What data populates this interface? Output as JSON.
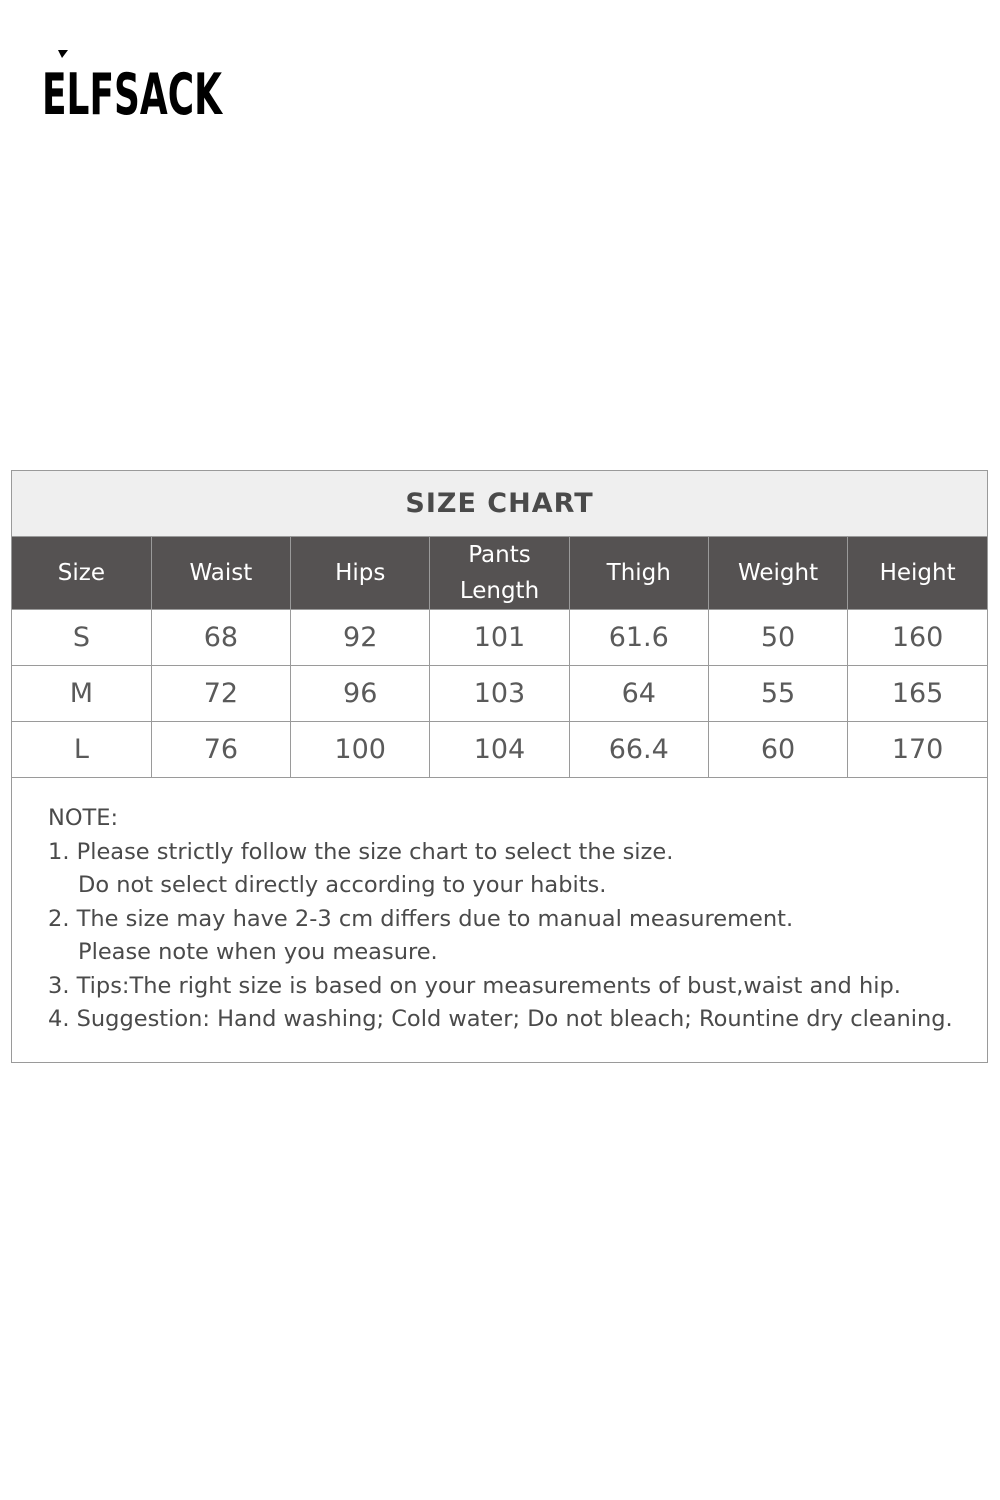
{
  "brand": {
    "logo_text": "ELFSACK"
  },
  "size_chart": {
    "title": "SIZE CHART",
    "columns": [
      "Size",
      "Waist",
      "Hips",
      "Pants Length",
      "Thigh",
      "Weight",
      "Height"
    ],
    "rows": [
      [
        "S",
        "68",
        "92",
        "101",
        "61.6",
        "50",
        "160"
      ],
      [
        "M",
        "72",
        "96",
        "103",
        "64",
        "55",
        "165"
      ],
      [
        "L",
        "76",
        "100",
        "104",
        "66.4",
        "60",
        "170"
      ]
    ],
    "header_bg": "#555252",
    "title_bg": "#efefef"
  },
  "notes": {
    "heading": "NOTE:",
    "lines": [
      "1. Please strictly follow the size chart to select the size.",
      "Do not select directly according to your habits.",
      "2. The size may have 2-3 cm differs due to manual measurement.",
      "Please note when you measure.",
      "3. Tips:The right size is based on your measurements of bust,waist and hip.",
      "4. Suggestion: Hand washing; Cold water; Do not bleach; Rountine dry cleaning."
    ]
  }
}
